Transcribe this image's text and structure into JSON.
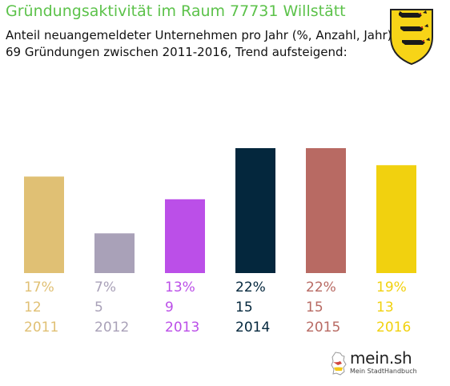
{
  "header": {
    "title": "Gründungsaktivität im Raum 77731 Willstätt",
    "subtitle_line1": "Anteil neuangemeldeter Unternehmen pro Jahr (%, Anzahl, Jahr)",
    "subtitle_line2": "69 Gründungen zwischen 2011-2016, Trend aufsteigend:"
  },
  "brand": {
    "name": "mein.sh",
    "tagline": "Mein StadtHandbuch"
  },
  "colors": {
    "title": "#5cc24a"
  },
  "chart_data": {
    "type": "bar",
    "categories": [
      "2011",
      "2012",
      "2013",
      "2014",
      "2015",
      "2016"
    ],
    "values": [
      17,
      7,
      13,
      22,
      22,
      19
    ],
    "counts": [
      12,
      5,
      9,
      15,
      15,
      13
    ],
    "percent_labels": [
      "17%",
      "7%",
      "13%",
      "22%",
      "22%",
      "19%"
    ],
    "colors": [
      "#e0c074",
      "#a9a1b8",
      "#bb4fe8",
      "#04273d",
      "#b86a63",
      "#f1d10f"
    ],
    "value_unit": "%",
    "grid": false,
    "legend": "none"
  }
}
